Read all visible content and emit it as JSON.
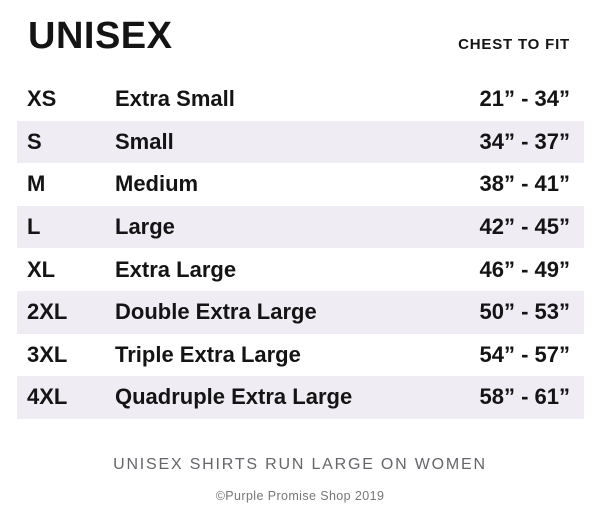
{
  "header": {
    "title": "UNISEX",
    "measure_label": "CHEST TO FIT"
  },
  "chart_data": {
    "type": "table",
    "title": "UNISEX",
    "measure_header": "CHEST TO FIT",
    "rows": [
      {
        "code": "XS",
        "label": "Extra Small",
        "chest": "21” - 34”"
      },
      {
        "code": "S",
        "label": "Small",
        "chest": "34” - 37”"
      },
      {
        "code": "M",
        "label": "Medium",
        "chest": "38” - 41”"
      },
      {
        "code": "L",
        "label": "Large",
        "chest": "42” - 45”"
      },
      {
        "code": "XL",
        "label": "Extra Large",
        "chest": "46” - 49”"
      },
      {
        "code": "2XL",
        "label": "Double Extra Large",
        "chest": "50” - 53”"
      },
      {
        "code": "3XL",
        "label": "Triple Extra Large",
        "chest": "54” - 57”"
      },
      {
        "code": "4XL",
        "label": "Quadruple Extra Large",
        "chest": "58” - 61”"
      }
    ]
  },
  "footer": {
    "note": "UNISEX SHIRTS RUN LARGE ON WOMEN",
    "copyright": "©Purple Promise Shop 2019"
  },
  "colors": {
    "row_alt_background": "#f0ecf3",
    "text": "#141414",
    "muted_text": "#65656a"
  }
}
